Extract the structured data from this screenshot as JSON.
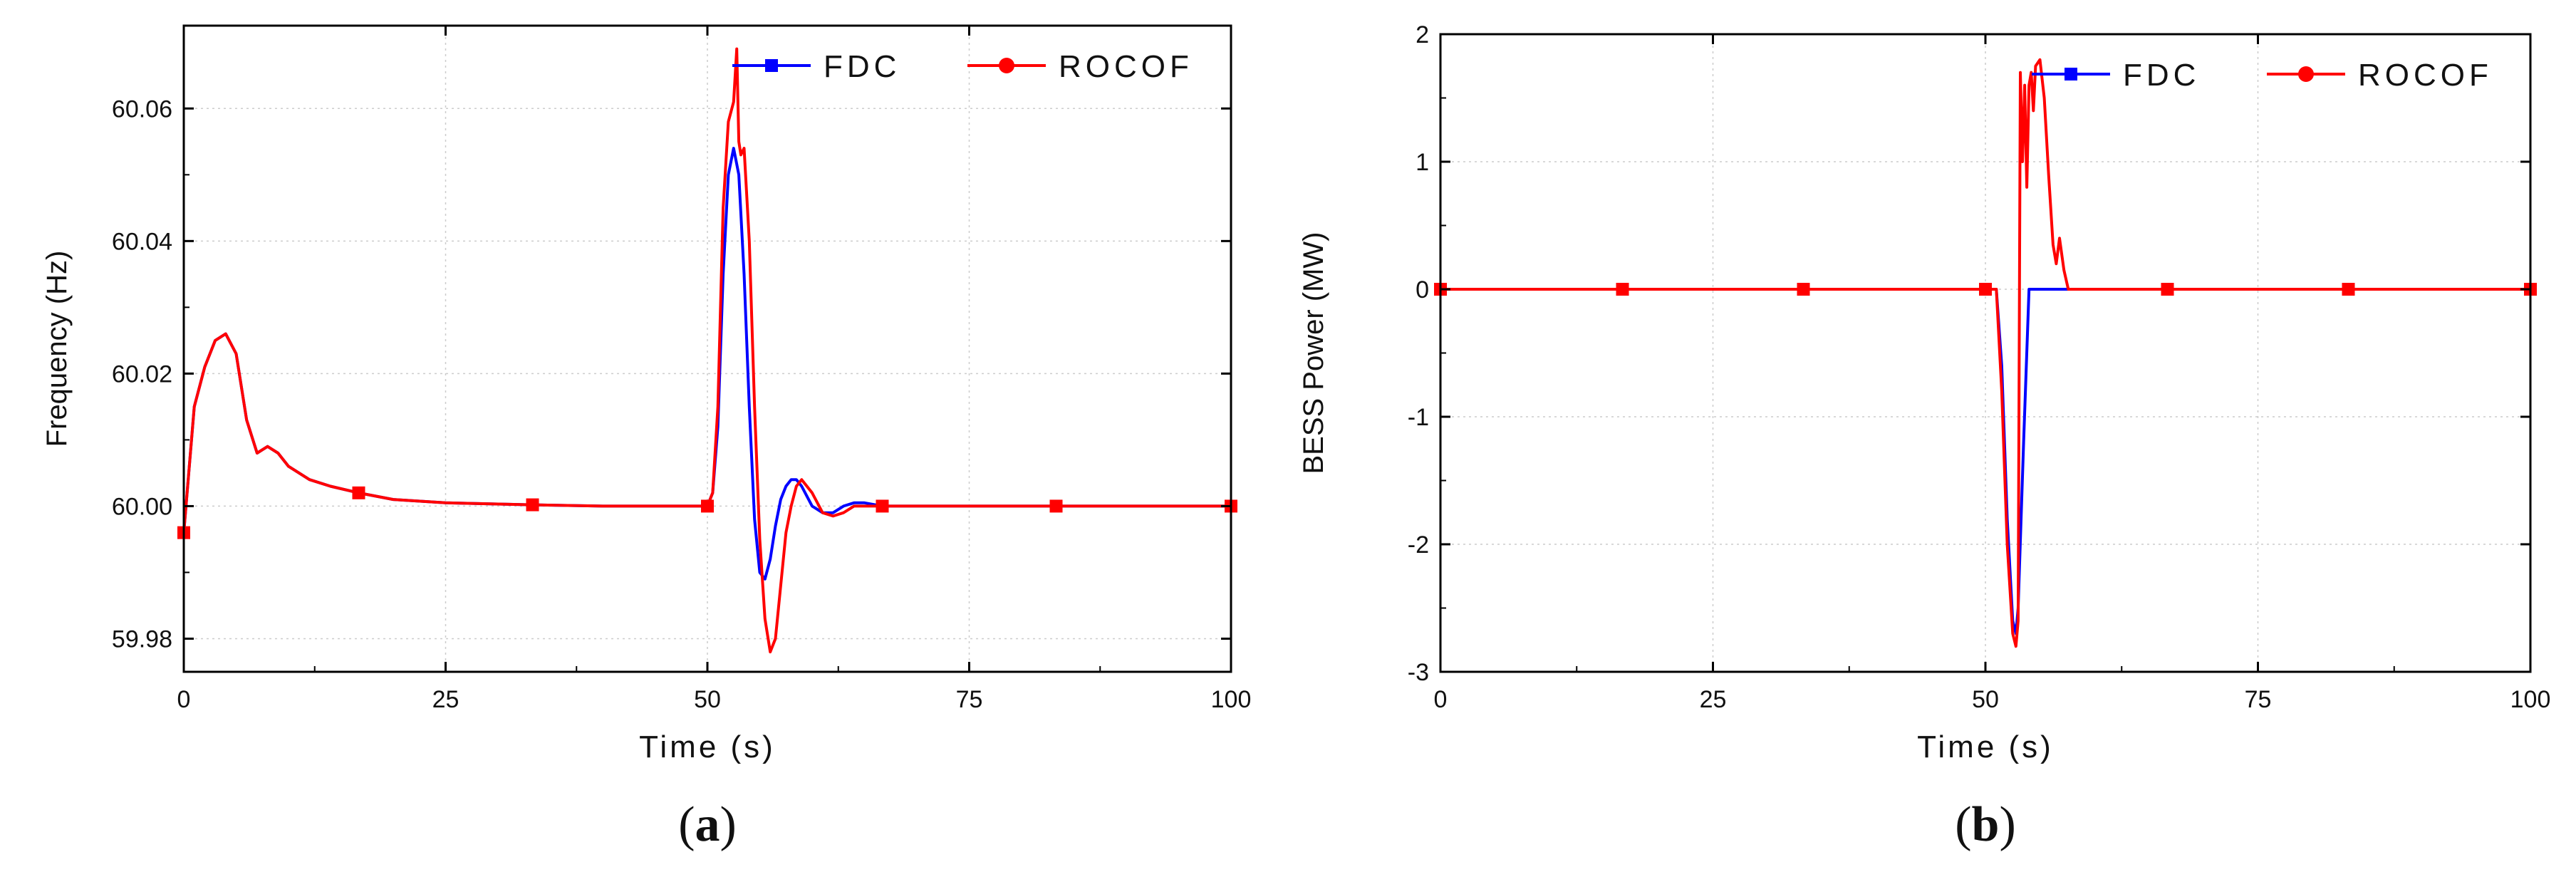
{
  "colors": {
    "fdc": "#0000ff",
    "rocof": "#ff0000",
    "axis": "#000000",
    "grid": "#cccccc"
  },
  "chart_data": [
    {
      "type": "line",
      "panel_label": {
        "open": "(",
        "letter": "a",
        "close": ")"
      },
      "xlabel": "Time (s)",
      "ylabel": "Frequency (Hz)",
      "xlim": [
        0,
        100
      ],
      "ylim": [
        59.975,
        60.0725
      ],
      "xticks": [
        0,
        25,
        50,
        75,
        100
      ],
      "yticks": [
        59.98,
        60.0,
        60.02,
        60.04,
        60.06
      ],
      "ytick_labels": [
        "59.98",
        "60.00",
        "60.02",
        "60.04",
        "60.06"
      ],
      "grid": true,
      "legend_position": "top-right",
      "series": [
        {
          "name": "FDC",
          "color": "#0000ff",
          "marker": "square",
          "x": [
            0,
            1,
            2,
            3,
            4,
            5,
            6,
            7,
            8,
            9,
            10,
            12,
            14,
            16.7,
            20,
            25,
            33.3,
            40,
            45,
            50,
            50.5,
            51,
            51.5,
            52,
            52.5,
            53,
            53.5,
            54,
            54.5,
            55,
            55.5,
            56,
            56.5,
            57,
            57.5,
            58,
            58.5,
            59,
            60,
            61,
            62,
            63,
            64,
            65,
            66.7,
            70,
            75,
            83.3,
            90,
            100
          ],
          "y": [
            59.996,
            60.015,
            60.021,
            60.025,
            60.026,
            60.023,
            60.013,
            60.008,
            60.009,
            60.008,
            60.006,
            60.004,
            60.003,
            60.002,
            60.001,
            60.0005,
            60.0002,
            60.0,
            60.0,
            60.0,
            60.002,
            60.012,
            60.035,
            60.05,
            60.054,
            60.05,
            60.035,
            60.015,
            59.998,
            59.99,
            59.989,
            59.992,
            59.997,
            60.001,
            60.003,
            60.004,
            60.004,
            60.003,
            60.0,
            59.999,
            59.999,
            60.0,
            60.0005,
            60.0005,
            60.0,
            60.0,
            60.0,
            60.0,
            60.0,
            60.0
          ],
          "markers_x": [
            0,
            16.7,
            33.3,
            50,
            66.7,
            83.3,
            100
          ],
          "markers_y": [
            59.996,
            60.002,
            60.0002,
            60.0,
            60.0,
            60.0,
            60.0
          ]
        },
        {
          "name": "ROCOF",
          "color": "#ff0000",
          "marker": "circle",
          "x": [
            0,
            1,
            2,
            3,
            4,
            5,
            6,
            7,
            8,
            9,
            10,
            12,
            14,
            16.7,
            20,
            25,
            33.3,
            40,
            45,
            50,
            50.5,
            51,
            51.5,
            52,
            52.5,
            52.8,
            53,
            53.2,
            53.5,
            54,
            54.5,
            55,
            55.5,
            56,
            56.5,
            57,
            57.5,
            58,
            58.5,
            59,
            60,
            61,
            62,
            63,
            64,
            65,
            66.7,
            70,
            75,
            83.3,
            90,
            100
          ],
          "y": [
            59.996,
            60.015,
            60.021,
            60.025,
            60.026,
            60.023,
            60.013,
            60.008,
            60.009,
            60.008,
            60.006,
            60.004,
            60.003,
            60.002,
            60.001,
            60.0005,
            60.0002,
            60.0,
            60.0,
            60.0,
            60.002,
            60.015,
            60.045,
            60.058,
            60.061,
            60.069,
            60.055,
            60.053,
            60.054,
            60.04,
            60.015,
            59.995,
            59.983,
            59.978,
            59.98,
            59.988,
            59.996,
            60.0,
            60.003,
            60.004,
            60.002,
            59.999,
            59.9985,
            59.999,
            60.0,
            60.0,
            60.0,
            60.0,
            60.0,
            60.0,
            60.0,
            60.0
          ],
          "markers_x": [
            0,
            16.7,
            33.3,
            50,
            66.7,
            83.3,
            100
          ],
          "markers_y": [
            59.996,
            60.002,
            60.0002,
            60.0,
            60.0,
            60.0,
            60.0
          ]
        }
      ]
    },
    {
      "type": "line",
      "panel_label": {
        "open": "(",
        "letter": "b",
        "close": ")"
      },
      "xlabel": "Time (s)",
      "ylabel": "BESS Power (MW)",
      "xlim": [
        0,
        100
      ],
      "ylim": [
        -3,
        2
      ],
      "xticks": [
        0,
        25,
        50,
        75,
        100
      ],
      "yticks": [
        -3,
        -2,
        -1,
        0,
        1,
        2
      ],
      "ytick_labels": [
        "-3",
        "-2",
        "-1",
        "0",
        "1",
        "2"
      ],
      "grid": true,
      "legend_position": "top-right",
      "series": [
        {
          "name": "FDC",
          "color": "#0000ff",
          "marker": "square",
          "x": [
            0,
            16.7,
            33.3,
            50,
            51,
            51.5,
            52,
            52.5,
            52.8,
            53,
            53.5,
            54,
            54.5,
            55,
            60,
            66.7,
            83.3,
            100
          ],
          "y": [
            0,
            0,
            0,
            0,
            0,
            -0.6,
            -1.8,
            -2.6,
            -2.7,
            -2.5,
            -1.2,
            0,
            0,
            0,
            0,
            0,
            0,
            0
          ],
          "markers_x": [
            0,
            16.7,
            33.3,
            50,
            66.7,
            83.3,
            100
          ],
          "markers_y": [
            0,
            0,
            0,
            0,
            0,
            0,
            0
          ]
        },
        {
          "name": "ROCOF",
          "color": "#ff0000",
          "marker": "circle",
          "x": [
            0,
            16.7,
            33.3,
            50,
            51,
            51.5,
            52,
            52.5,
            52.8,
            53,
            53.2,
            53.4,
            53.6,
            53.8,
            54,
            54.2,
            54.4,
            54.6,
            55,
            55.4,
            55.8,
            56.2,
            56.5,
            56.8,
            57.2,
            57.6,
            58,
            60,
            66.7,
            83.3,
            100
          ],
          "y": [
            0,
            0,
            0,
            0,
            0,
            -0.8,
            -2.0,
            -2.7,
            -2.8,
            -2.6,
            1.7,
            1.0,
            1.6,
            0.8,
            1.6,
            1.7,
            1.4,
            1.75,
            1.8,
            1.5,
            0.9,
            0.35,
            0.2,
            0.4,
            0.15,
            0.0,
            0.0,
            0,
            0,
            0,
            0
          ],
          "markers_x": [
            0,
            16.7,
            33.3,
            50,
            66.7,
            83.3,
            100
          ],
          "markers_y": [
            0,
            0,
            0,
            0,
            0,
            0,
            0
          ]
        }
      ]
    }
  ]
}
